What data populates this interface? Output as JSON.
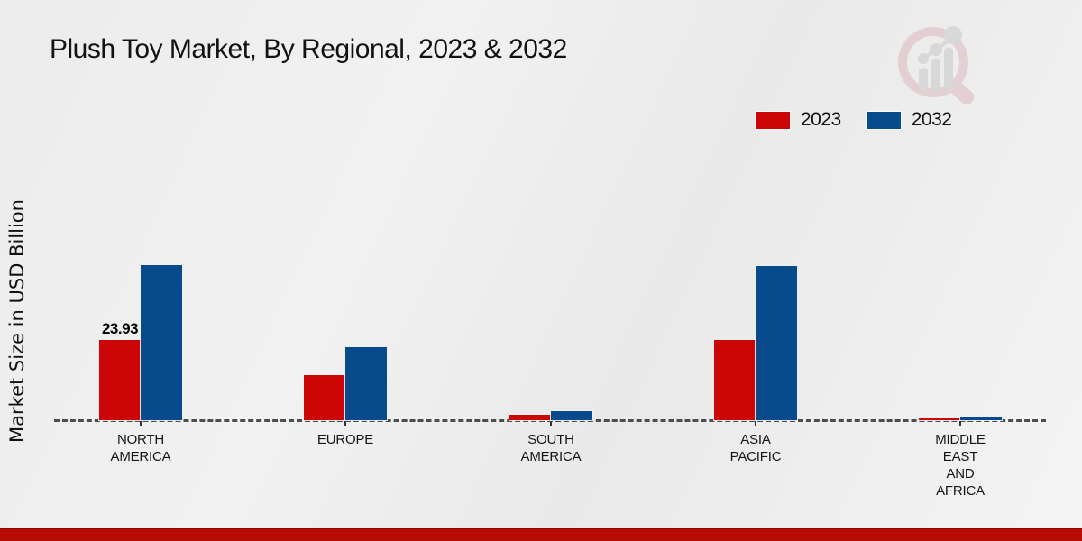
{
  "page": {
    "title": "Plush Toy Market, By Regional, 2023 & 2032"
  },
  "colors": {
    "series_2023": "#cc0606",
    "series_2032": "#074b8c",
    "axis_dash": "#4d4d4d",
    "footer_band": "#b70b06",
    "background": "#efefef"
  },
  "legend": {
    "items": [
      {
        "label": "2023",
        "color": "#cc0606"
      },
      {
        "label": "2032",
        "color": "#074b8c"
      }
    ]
  },
  "watermark": {
    "name": "market-research-magnifier-logo"
  },
  "chart_data": {
    "type": "bar",
    "title": "Plush Toy Market, By Regional, 2023 & 2032",
    "xlabel": "",
    "ylabel": "Market Size in USD Billion",
    "categories": [
      "NORTH AMERICA",
      "EUROPE",
      "SOUTH AMERICA",
      "ASIA PACIFIC",
      "MIDDLE EAST AND AFRICA"
    ],
    "category_label_lines": [
      [
        "NORTH",
        "AMERICA"
      ],
      [
        "EUROPE"
      ],
      [
        "SOUTH",
        "AMERICA"
      ],
      [
        "ASIA",
        "PACIFIC"
      ],
      [
        "MIDDLE",
        "EAST",
        "AND",
        "AFRICA"
      ]
    ],
    "series": [
      {
        "name": "2023",
        "color": "#cc0606",
        "values": [
          23.93,
          13.4,
          1.6,
          24.0,
          0.5
        ]
      },
      {
        "name": "2032",
        "color": "#074b8c",
        "values": [
          46.3,
          21.8,
          2.7,
          46.1,
          0.9
        ]
      }
    ],
    "bar_labels": [
      {
        "series_index": 0,
        "category_index": 0,
        "text": "23.93"
      }
    ],
    "ylim": [
      0,
      50
    ],
    "grid": false,
    "y_axis_ticks_visible": false,
    "baseline_style": "dashed",
    "legend_position": "top-right"
  }
}
